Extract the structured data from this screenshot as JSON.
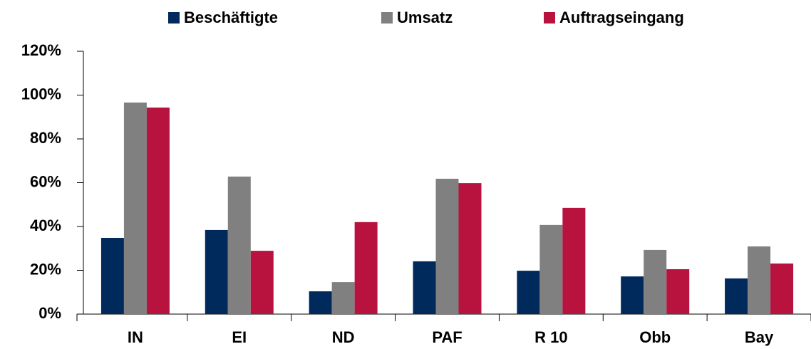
{
  "chart_data": {
    "type": "bar",
    "categories": [
      "IN",
      "EI",
      "ND",
      "PAF",
      "R 10",
      "Obb",
      "Bay"
    ],
    "series": [
      {
        "name": "Beschäftigte",
        "color": "#002a5c",
        "values": [
          34.8,
          38.4,
          10.4,
          24.1,
          19.8,
          17.2,
          16.3
        ]
      },
      {
        "name": "Umsatz",
        "color": "#808080",
        "values": [
          96.6,
          62.8,
          14.6,
          61.8,
          40.7,
          29.3,
          30.9
        ]
      },
      {
        "name": "Auftragseingang",
        "color": "#b8123e",
        "values": [
          94.3,
          28.9,
          42.0,
          59.8,
          48.5,
          20.5,
          23.1
        ]
      }
    ],
    "ylim": [
      0,
      120
    ],
    "yticks": [
      {
        "value": 0,
        "label": "0%"
      },
      {
        "value": 20,
        "label": "20%"
      },
      {
        "value": 40,
        "label": "40%"
      },
      {
        "value": 60,
        "label": "60%"
      },
      {
        "value": 80,
        "label": "80%"
      },
      {
        "value": 100,
        "label": "100%"
      },
      {
        "value": 120,
        "label": "120%"
      }
    ],
    "legend": "top"
  }
}
